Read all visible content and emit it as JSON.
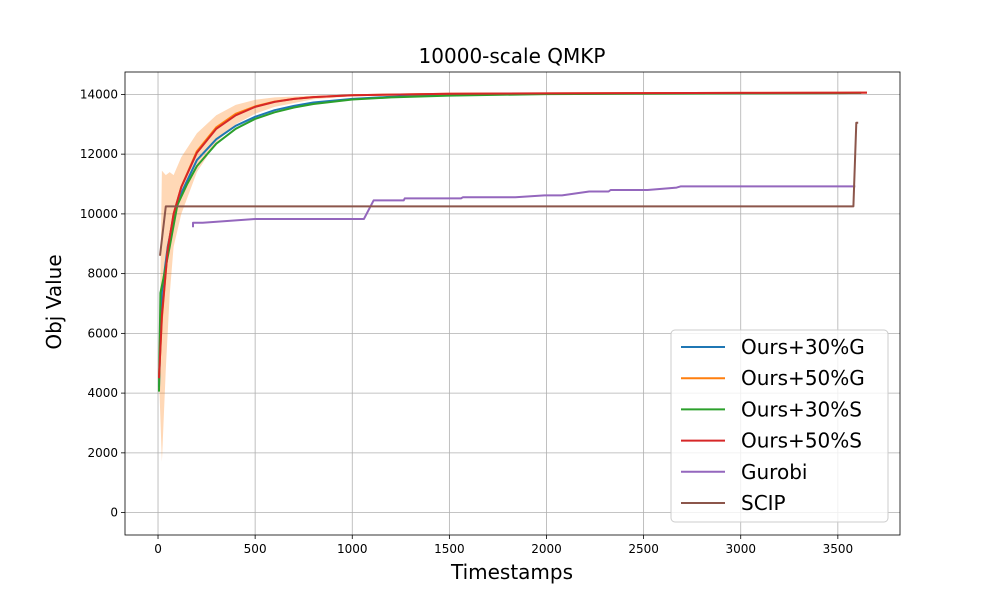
{
  "chart_data": {
    "type": "line",
    "title": "10000-scale QMKP",
    "xlabel": "Timestamps",
    "ylabel": "Obj Value",
    "xlim": [
      -170,
      3820
    ],
    "ylim": [
      -750,
      14750
    ],
    "x_ticks": [
      0,
      500,
      1000,
      1500,
      2000,
      2500,
      3000,
      3500
    ],
    "y_ticks": [
      0,
      2000,
      4000,
      6000,
      8000,
      10000,
      12000,
      14000
    ],
    "grid": true,
    "legend_position": "lower-right",
    "series": [
      {
        "name": "Ours+30%G",
        "color": "#1f77b4",
        "points": [
          [
            5,
            4200
          ],
          [
            20,
            7400
          ],
          [
            50,
            8900
          ],
          [
            80,
            9900
          ],
          [
            120,
            10700
          ],
          [
            200,
            11800
          ],
          [
            300,
            12500
          ],
          [
            400,
            12950
          ],
          [
            500,
            13250
          ],
          [
            600,
            13470
          ],
          [
            700,
            13620
          ],
          [
            800,
            13730
          ],
          [
            1000,
            13850
          ],
          [
            1200,
            13920
          ],
          [
            1500,
            13980
          ],
          [
            2000,
            14020
          ],
          [
            2500,
            14035
          ],
          [
            3000,
            14045
          ],
          [
            3500,
            14050
          ],
          [
            3620,
            14055
          ]
        ]
      },
      {
        "name": "Ours+50%G",
        "color": "#ff7f0e",
        "points": [
          [
            5,
            4500
          ],
          [
            20,
            6500
          ],
          [
            50,
            8800
          ],
          [
            80,
            10000
          ],
          [
            120,
            10900
          ],
          [
            200,
            12100
          ],
          [
            300,
            12900
          ],
          [
            400,
            13350
          ],
          [
            500,
            13600
          ],
          [
            600,
            13760
          ],
          [
            700,
            13850
          ],
          [
            800,
            13910
          ],
          [
            1000,
            13970
          ],
          [
            1200,
            13995
          ],
          [
            1500,
            14020
          ],
          [
            2000,
            14035
          ],
          [
            2500,
            14045
          ],
          [
            3000,
            14050
          ],
          [
            3500,
            14055
          ],
          [
            3650,
            14060
          ]
        ],
        "band_upper": [
          [
            5,
            4500
          ],
          [
            20,
            11450
          ],
          [
            40,
            11300
          ],
          [
            60,
            11400
          ],
          [
            80,
            11300
          ],
          [
            120,
            11900
          ],
          [
            200,
            12700
          ],
          [
            300,
            13300
          ],
          [
            400,
            13650
          ],
          [
            500,
            13820
          ],
          [
            600,
            13900
          ],
          [
            800,
            13960
          ],
          [
            1000,
            13990
          ],
          [
            1500,
            14030
          ],
          [
            3650,
            14060
          ]
        ],
        "band_lower": [
          [
            5,
            4500
          ],
          [
            20,
            1700
          ],
          [
            40,
            4800
          ],
          [
            60,
            7300
          ],
          [
            80,
            8900
          ],
          [
            120,
            10000
          ],
          [
            200,
            11400
          ],
          [
            300,
            12400
          ],
          [
            400,
            13000
          ],
          [
            500,
            13350
          ],
          [
            600,
            13580
          ],
          [
            800,
            13840
          ],
          [
            1000,
            13940
          ],
          [
            1500,
            14010
          ],
          [
            3650,
            14060
          ]
        ]
      },
      {
        "name": "Ours+30%S",
        "color": "#2ca02c",
        "points": [
          [
            5,
            4050
          ],
          [
            12,
            7350
          ],
          [
            30,
            7900
          ],
          [
            60,
            8900
          ],
          [
            100,
            10300
          ],
          [
            150,
            11000
          ],
          [
            200,
            11600
          ],
          [
            300,
            12350
          ],
          [
            400,
            12850
          ],
          [
            500,
            13180
          ],
          [
            600,
            13400
          ],
          [
            700,
            13560
          ],
          [
            800,
            13680
          ],
          [
            1000,
            13830
          ],
          [
            1200,
            13900
          ],
          [
            1500,
            13960
          ],
          [
            2000,
            14010
          ],
          [
            2500,
            14025
          ],
          [
            3000,
            14035
          ],
          [
            3500,
            14045
          ],
          [
            3620,
            14050
          ]
        ]
      },
      {
        "name": "Ours+50%S",
        "color": "#d62728",
        "points": [
          [
            5,
            4500
          ],
          [
            20,
            6600
          ],
          [
            50,
            8800
          ],
          [
            80,
            10000
          ],
          [
            120,
            10900
          ],
          [
            200,
            12050
          ],
          [
            300,
            12850
          ],
          [
            400,
            13300
          ],
          [
            500,
            13580
          ],
          [
            600,
            13750
          ],
          [
            700,
            13850
          ],
          [
            800,
            13910
          ],
          [
            1000,
            13970
          ],
          [
            1200,
            13995
          ],
          [
            1500,
            14020
          ],
          [
            2000,
            14035
          ],
          [
            2500,
            14045
          ],
          [
            3000,
            14050
          ],
          [
            3500,
            14055
          ],
          [
            3650,
            14060
          ]
        ]
      },
      {
        "name": "Gurobi",
        "color": "#9467bd",
        "points": [
          [
            180,
            9550
          ],
          [
            180,
            9700
          ],
          [
            230,
            9700
          ],
          [
            500,
            9830
          ],
          [
            1060,
            9830
          ],
          [
            1110,
            10450
          ],
          [
            1265,
            10450
          ],
          [
            1270,
            10520
          ],
          [
            1560,
            10520
          ],
          [
            1570,
            10560
          ],
          [
            1840,
            10560
          ],
          [
            1990,
            10620
          ],
          [
            2080,
            10620
          ],
          [
            2220,
            10750
          ],
          [
            2320,
            10750
          ],
          [
            2330,
            10800
          ],
          [
            2520,
            10800
          ],
          [
            2670,
            10880
          ],
          [
            2690,
            10920
          ],
          [
            3590,
            10920
          ]
        ]
      },
      {
        "name": "SCIP",
        "color": "#8c564b",
        "points": [
          [
            10,
            8600
          ],
          [
            40,
            10250
          ],
          [
            3580,
            10250
          ],
          [
            3595,
            13050
          ],
          [
            3605,
            13050
          ]
        ]
      }
    ]
  }
}
